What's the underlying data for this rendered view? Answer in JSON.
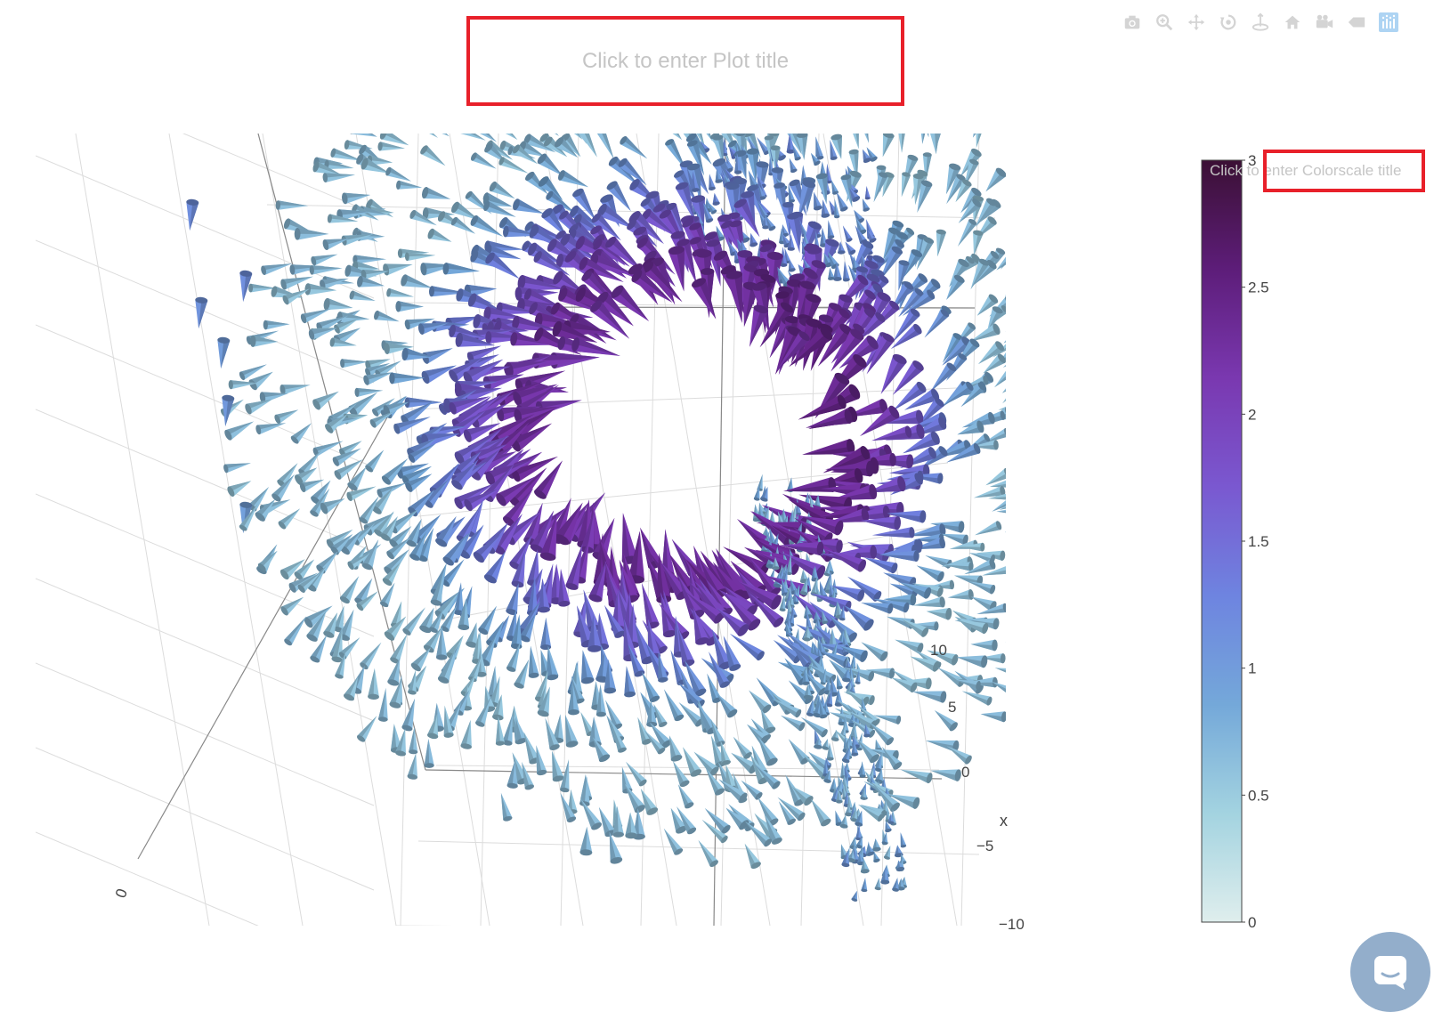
{
  "title": {
    "placeholder": "Click to enter Plot title"
  },
  "modebar": {
    "buttons": [
      {
        "name": "camera-icon",
        "tooltip": "Download plot as a png"
      },
      {
        "name": "zoom-icon",
        "tooltip": "Zoom"
      },
      {
        "name": "pan-icon",
        "tooltip": "Pan"
      },
      {
        "name": "orbit-rotation-icon",
        "tooltip": "Orbital rotation"
      },
      {
        "name": "turntable-rotation-icon",
        "tooltip": "Turntable rotation"
      },
      {
        "name": "home-icon",
        "tooltip": "Reset camera to default"
      },
      {
        "name": "camera-views-icon",
        "tooltip": "Save camera"
      },
      {
        "name": "hover-label-icon",
        "tooltip": "Toggle show closest data on hover"
      },
      {
        "name": "plotly-logo-icon",
        "tooltip": "Produced with Plotly"
      }
    ]
  },
  "colorbar": {
    "title_placeholder": "Click to enter Colorscale title",
    "ticks": [
      "0",
      "0.5",
      "1",
      "1.5",
      "2",
      "2.5",
      "3"
    ],
    "range": [
      0,
      3
    ],
    "colors": [
      "#dfeeed",
      "#a3d3e0",
      "#74a8d9",
      "#6e84e0",
      "#7a58d0",
      "#7a38b0",
      "#5d1d79",
      "#3b1034"
    ]
  },
  "chart_data": {
    "type": "cone",
    "title": "",
    "axes": {
      "x": {
        "label": "x",
        "ticks": [
          "10",
          "5",
          "0",
          "−5",
          "−10"
        ]
      },
      "y": {
        "label": "",
        "ticks": [
          "0"
        ]
      }
    },
    "value_range": [
      0,
      3
    ],
    "description_values": {
      "ring_max_magnitude": 2.3,
      "outer_magnitude_min": 0.6,
      "outer_magnitude_max": 1.3
    },
    "grid": true,
    "colorscale": "dense",
    "colorbar_position": "right"
  },
  "chat": {
    "icon": "chat-bubble-icon"
  }
}
